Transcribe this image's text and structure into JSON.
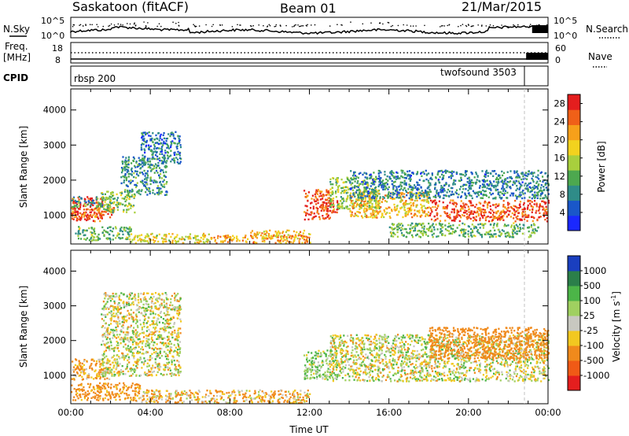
{
  "header": {
    "site": "Saskatoon (fitACF)",
    "beam": "Beam 01",
    "date": "21/Mar/2015"
  },
  "top_panels": {
    "nsky_label": "N.Sky",
    "nsky_ticks": [
      "10^5",
      "10^0"
    ],
    "nsearch_label": "N.Search",
    "freq_label": "Freq.",
    "freq_unit": "[MHz]",
    "freq_ticks": [
      "18",
      "8"
    ],
    "nave_label": "Nave",
    "nave_ticks": [
      "60",
      "0"
    ],
    "cpid_label": "CPID",
    "cpid_segments": [
      {
        "name": "rbsp 200",
        "start_hour": 0,
        "end_hour": 22.9
      },
      {
        "name": "twofsound 3503",
        "start_hour": 22.9,
        "end_hour": 24
      }
    ]
  },
  "chart_data": [
    {
      "type": "heatmap",
      "panel": "power",
      "xlabel": "Time UT",
      "ylabel": "Slant Range [km]",
      "x_unit": "hours UT",
      "xlim": [
        0,
        24
      ],
      "ylim": [
        180,
        4600
      ],
      "x_ticks": [
        "00:00",
        "04:00",
        "08:00",
        "12:00",
        "16:00",
        "20:00",
        "00:00"
      ],
      "y_ticks": [
        1000,
        2000,
        3000,
        4000
      ],
      "colorbar": {
        "label": "Power [dB]",
        "ticks": [
          4,
          8,
          12,
          16,
          20,
          24,
          28
        ],
        "range": [
          0,
          30
        ],
        "colors": [
          "#1a28ff",
          "#1a57c9",
          "#2f8c88",
          "#4da84f",
          "#a8cf3d",
          "#f2d21e",
          "#f7a01a",
          "#f06018",
          "#e41e1e"
        ]
      },
      "scatter_regions": [
        {
          "t": [
            0.0,
            1.6
          ],
          "r": [
            850,
            1550
          ],
          "power": 28
        },
        {
          "t": [
            0.0,
            2.2
          ],
          "r": [
            950,
            1250
          ],
          "power": 24
        },
        {
          "t": [
            0.0,
            2.0
          ],
          "r": [
            1250,
            1550
          ],
          "power": 10
        },
        {
          "t": [
            1.5,
            3.2
          ],
          "r": [
            1100,
            1700
          ],
          "power": 14
        },
        {
          "t": [
            2.5,
            4.8
          ],
          "r": [
            1600,
            2700
          ],
          "power": 9
        },
        {
          "t": [
            3.5,
            5.5
          ],
          "r": [
            2500,
            3400
          ],
          "power": 7
        },
        {
          "t": [
            0.2,
            3.0
          ],
          "r": [
            300,
            700
          ],
          "power": 12
        },
        {
          "t": [
            3.0,
            7.0
          ],
          "r": [
            220,
            500
          ],
          "power": 18
        },
        {
          "t": [
            7.0,
            12.0
          ],
          "r": [
            230,
            450
          ],
          "power": 22
        },
        {
          "t": [
            9.0,
            12.0
          ],
          "r": [
            350,
            600
          ],
          "power": 20
        },
        {
          "t": [
            11.7,
            13.0
          ],
          "r": [
            900,
            1750
          ],
          "power": 26
        },
        {
          "t": [
            12.5,
            13.4
          ],
          "r": [
            1100,
            1500
          ],
          "power": 28
        },
        {
          "t": [
            13.0,
            15.5
          ],
          "r": [
            1200,
            2100
          ],
          "power": 14
        },
        {
          "t": [
            14.0,
            18.0
          ],
          "r": [
            950,
            1700
          ],
          "power": 20
        },
        {
          "t": [
            18.0,
            24.0
          ],
          "r": [
            850,
            1450
          ],
          "power": 26
        },
        {
          "t": [
            14.0,
            24.0
          ],
          "r": [
            1500,
            2300
          ],
          "power": 8
        },
        {
          "t": [
            16.0,
            23.5
          ],
          "r": [
            400,
            800
          ],
          "power": 12
        }
      ]
    },
    {
      "type": "heatmap",
      "panel": "velocity",
      "xlabel": "Time UT",
      "ylabel": "Slant Range [km]",
      "x_unit": "hours UT",
      "xlim": [
        0,
        24
      ],
      "ylim": [
        180,
        4600
      ],
      "x_ticks": [
        "00:00",
        "04:00",
        "08:00",
        "12:00",
        "16:00",
        "20:00",
        "00:00"
      ],
      "y_ticks": [
        1000,
        2000,
        3000,
        4000
      ],
      "colorbar": {
        "label": "Velocity [m s^-1]",
        "ticks": [
          "1000",
          "500",
          "100",
          "25",
          "-25",
          "-100",
          "-500",
          "-1000"
        ],
        "colors": [
          "#1a3fbf",
          "#2b7f4a",
          "#4cb548",
          "#a0d060",
          "#c8c8c0",
          "#f2c820",
          "#f08a1c",
          "#f05a16",
          "#e41e1e"
        ]
      },
      "scatter_regions": [
        {
          "t": [
            0.0,
            2.0
          ],
          "r": [
            900,
            1500
          ],
          "velocity": -150
        },
        {
          "t": [
            1.5,
            5.5
          ],
          "r": [
            1000,
            3400
          ],
          "velocity": 0
        },
        {
          "t": [
            0.0,
            3.5
          ],
          "r": [
            300,
            800
          ],
          "velocity": -200
        },
        {
          "t": [
            3.0,
            12.0
          ],
          "r": [
            220,
            600
          ],
          "velocity": -90
        },
        {
          "t": [
            11.7,
            13.4
          ],
          "r": [
            900,
            1750
          ],
          "velocity": 100
        },
        {
          "t": [
            13.0,
            24.0
          ],
          "r": [
            850,
            2200
          ],
          "velocity": 0
        },
        {
          "t": [
            18.0,
            24.0
          ],
          "r": [
            1500,
            2400
          ],
          "velocity": -300
        }
      ]
    }
  ]
}
